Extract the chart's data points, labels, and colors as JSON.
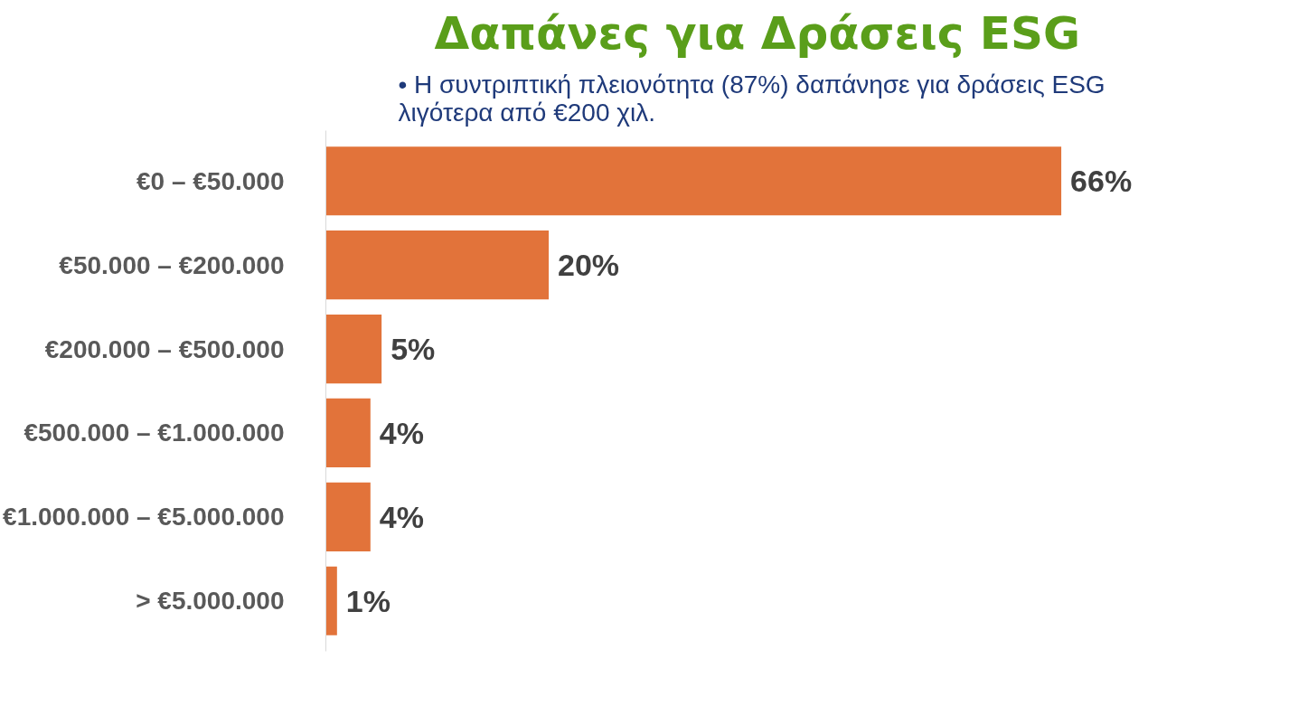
{
  "chart_data": {
    "type": "bar",
    "orientation": "horizontal",
    "title": "Δαπάνες για Δράσεις ESG",
    "subtitle": "• Η συντριπτική πλειονότητα (87%) δαπάνησε για δράσεις ESG λιγότερα από €200 χιλ.",
    "categories": [
      "€0 – €50.000",
      "€50.000 – €200.000",
      "€200.000 – €500.000",
      "€500.000 – €1.000.000",
      "€1.000.000 – €5.000.000",
      "> €5.000.000"
    ],
    "values": [
      66,
      20,
      5,
      4,
      4,
      1
    ],
    "value_labels": [
      "66%",
      "20%",
      "5%",
      "4%",
      "4%",
      "1%"
    ],
    "color": "#e2733a",
    "grid": false
  }
}
